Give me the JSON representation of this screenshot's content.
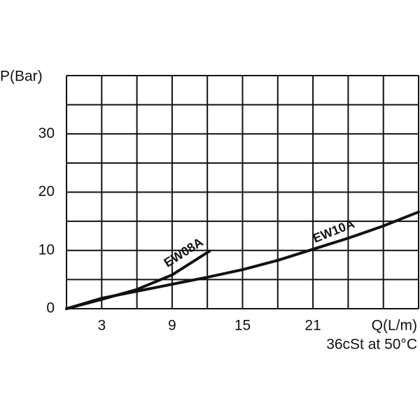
{
  "chart_data": {
    "type": "line",
    "y_label": "P(Bar)",
    "x_label": "Q(L/m)",
    "subtitle": "36cSt at 50°C",
    "xlim": [
      0,
      30
    ],
    "xticks": [
      3,
      9,
      15,
      21
    ],
    "xgrid": [
      0,
      3,
      6,
      9,
      12,
      15,
      18,
      21,
      24,
      27,
      30
    ],
    "ylim": [
      0,
      40
    ],
    "yticks": [
      0,
      10,
      20,
      30
    ],
    "ygrid": [
      0,
      5,
      10,
      15,
      20,
      25,
      30,
      35,
      40
    ],
    "grid": true,
    "series": [
      {
        "name": "EW08A",
        "color": "#111111",
        "x": [
          0,
          3,
          6,
          9,
          12.2
        ],
        "values": [
          0,
          1.6,
          3.3,
          5.8,
          9.9
        ]
      },
      {
        "name": "EW10A",
        "color": "#111111",
        "x": [
          0,
          3,
          6,
          9,
          12,
          15,
          18,
          21,
          24,
          27,
          30
        ],
        "values": [
          0,
          1.8,
          3.0,
          4.2,
          5.4,
          6.7,
          8.3,
          10.2,
          12.1,
          14.2,
          16.6
        ]
      }
    ]
  }
}
